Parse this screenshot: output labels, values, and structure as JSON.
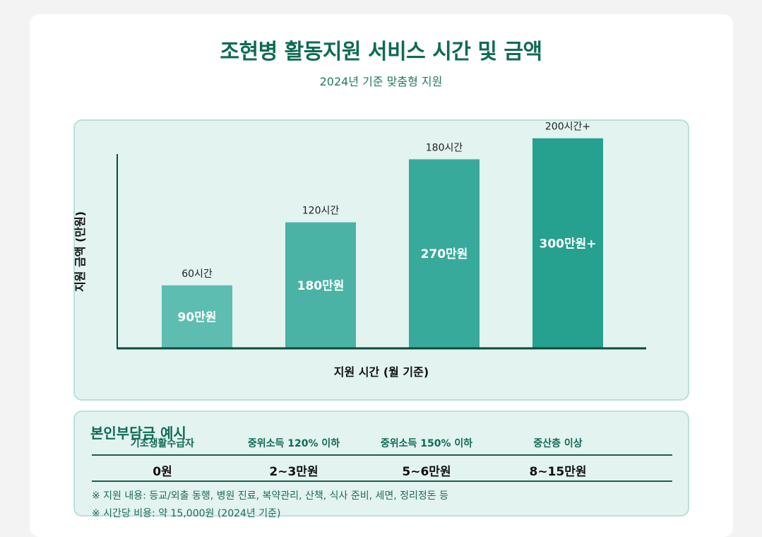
{
  "title": "조현병 활동지원 서비스 시간 및 금액",
  "subtitle": "2024년 기준 맞춤형 지원",
  "chart_data": {
    "type": "bar",
    "categories": [
      "60시간",
      "120시간",
      "180시간",
      "200시간+"
    ],
    "values": [
      90,
      180,
      270,
      300
    ],
    "value_labels": [
      "90만원",
      "180만원",
      "270만원",
      "300만원+"
    ],
    "ylabel": "지원 금액 (만원)",
    "xlabel": "지원 시간 (월 기준)",
    "ylim": [
      0,
      330
    ],
    "colors": [
      "#5dbdb0",
      "#4bb3a5",
      "#38aa9c",
      "#26a08f"
    ]
  },
  "cost_table": {
    "title": "본인부담금 예시",
    "headers": [
      "기초생활수급자",
      "중위소득 120% 이하",
      "중위소득 150% 이하",
      "중산층 이상"
    ],
    "values": [
      "0원",
      "2~3만원",
      "5~6만원",
      "8~15만원"
    ]
  },
  "notes": [
    "※ 지원 내용: 등교/외출 동행, 병원 진료, 복약관리, 산책, 식사 준비, 세면, 정리정돈 등",
    "※ 시간당 비용: 약 15,000원 (2024년 기준)"
  ]
}
